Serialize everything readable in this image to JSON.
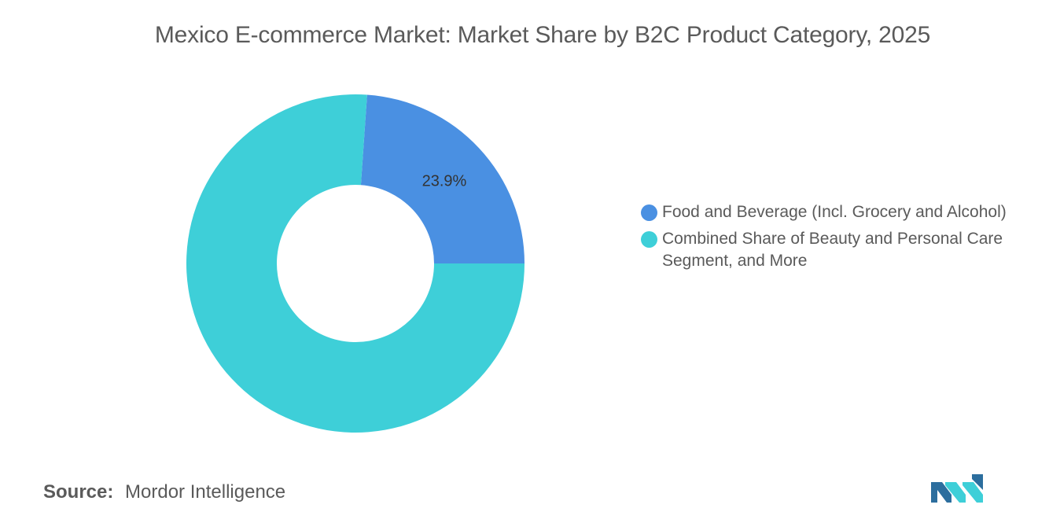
{
  "chart_data": {
    "type": "pie",
    "title": "Mexico E-commerce Market: Market Share by B2C Product Category, 2025",
    "donut": true,
    "legend_position": "right",
    "slices": [
      {
        "label": "Food and Beverage (Incl. Grocery and Alcohol)",
        "value": 23.9,
        "value_label": "23.9%",
        "color": "#4a90e2"
      },
      {
        "label": "Combined Share of Beauty and Personal Care Segment, and More",
        "value": 76.1,
        "value_label": "",
        "color": "#3ecfd8"
      }
    ]
  },
  "source": {
    "label": "Source:",
    "text": "Mordor Intelligence"
  },
  "logo": {
    "icon": "mordor-intelligence-logo",
    "colors": [
      "#2c6e9e",
      "#3ecfd8"
    ]
  }
}
